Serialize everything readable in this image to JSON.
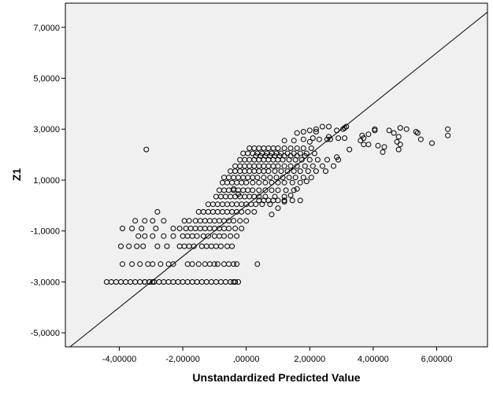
{
  "chart_data": {
    "type": "scatter",
    "title": "",
    "xlabel": "Unstandardized Predicted Value",
    "ylabel": "Z1",
    "xlim": [
      -5.7,
      7.6
    ],
    "ylim": [
      -5.55,
      7.95
    ],
    "grid": false,
    "x_ticks": [
      -4,
      -2,
      0,
      2,
      4,
      6
    ],
    "x_tick_labels": [
      "-4,00000",
      "-2,00000",
      ",00000",
      "2,00000",
      "4,00000",
      "6,00000"
    ],
    "y_ticks": [
      -5,
      -3,
      -1,
      1,
      3,
      5,
      7
    ],
    "y_tick_labels": [
      "-5,0000",
      "-3,0000",
      "-1,0000",
      "1,0000",
      "3,0000",
      "5,0000",
      "7,0000"
    ],
    "reference_line": {
      "type": "diagonal",
      "equation": "y = x"
    },
    "colors": {
      "background": "#f0f0f0",
      "marker_stroke": "#000000",
      "reference_line": "#000000"
    },
    "marker": "open-circle",
    "x": [
      -4.4,
      -4.25,
      -4.1,
      -3.95,
      -3.8,
      -3.65,
      -3.5,
      -3.35,
      -3.2,
      -3.05,
      -2.9,
      -2.75,
      -2.6,
      -2.45,
      -2.3,
      -2.15,
      -2.0,
      -1.85,
      -1.7,
      -1.55,
      -1.4,
      -1.25,
      -1.1,
      -0.95,
      -0.8,
      -0.65,
      -0.5,
      -0.35,
      -0.25,
      -3.9,
      -3.6,
      -3.35,
      -3.1,
      -2.95,
      -2.7,
      -2.45,
      -2.3,
      -1.85,
      -1.7,
      -1.5,
      -1.3,
      -1.15,
      -1.0,
      -0.9,
      -0.7,
      -0.55,
      -0.4,
      -0.3,
      -3.95,
      -3.7,
      -3.45,
      -3.25,
      -2.8,
      -2.5,
      -2.1,
      -1.95,
      -1.8,
      -1.65,
      -1.4,
      -1.25,
      -1.1,
      -0.95,
      -0.8,
      -0.6,
      -0.45,
      -3.4,
      -3.2,
      -2.95,
      -2.6,
      -2.3,
      -2.0,
      -1.85,
      -1.7,
      -1.55,
      -1.35,
      -1.2,
      -1.0,
      -0.85,
      -0.7,
      -0.5,
      -0.3,
      -3.9,
      -3.6,
      -3.3,
      -2.85,
      -2.3,
      -2.1,
      -1.9,
      -1.75,
      -1.6,
      -1.45,
      -1.3,
      -1.15,
      -1.0,
      -0.85,
      -0.7,
      -0.55,
      -0.35,
      -0.15,
      -3.5,
      -3.2,
      -2.95,
      -2.6,
      -1.95,
      -1.8,
      -1.6,
      -1.45,
      -1.3,
      -1.15,
      -1.0,
      -0.85,
      -0.7,
      -0.55,
      -0.4,
      -0.2,
      0.0,
      -2.8,
      -1.5,
      -1.35,
      -1.2,
      -1.05,
      -0.9,
      -0.75,
      -0.6,
      -0.45,
      -0.3,
      -0.15,
      0.05,
      0.25,
      -1.2,
      -1.05,
      -0.9,
      -0.75,
      -0.6,
      -0.45,
      -0.3,
      -0.15,
      0.0,
      0.15,
      0.3,
      0.5,
      0.75,
      -0.95,
      -0.8,
      -0.65,
      -0.5,
      -0.35,
      -0.2,
      -0.05,
      0.1,
      0.25,
      0.4,
      0.6,
      0.9,
      1.2,
      -0.85,
      -0.7,
      -0.55,
      -0.4,
      -0.25,
      -0.1,
      0.05,
      0.2,
      0.4,
      0.6,
      0.8,
      1.0,
      1.25,
      1.5,
      -0.75,
      -0.6,
      -0.45,
      -0.3,
      -0.15,
      0.0,
      0.2,
      0.4,
      0.6,
      0.8,
      1.0,
      1.2,
      1.45,
      1.7,
      -0.7,
      -0.55,
      -0.4,
      -0.25,
      -0.1,
      0.05,
      0.2,
      0.35,
      0.55,
      0.75,
      0.95,
      1.15,
      1.35,
      1.55,
      1.8,
      2.05,
      -0.5,
      -0.35,
      -0.2,
      -0.05,
      0.1,
      0.25,
      0.4,
      0.55,
      0.7,
      0.9,
      1.1,
      1.3,
      1.5,
      1.7,
      1.95,
      2.2,
      2.5,
      -0.35,
      -0.2,
      -0.05,
      0.1,
      0.25,
      0.4,
      0.55,
      0.7,
      0.85,
      1.0,
      1.2,
      1.4,
      1.6,
      1.85,
      2.1,
      2.4,
      2.75,
      -0.2,
      -0.05,
      0.1,
      0.25,
      0.4,
      0.55,
      0.7,
      0.85,
      1.0,
      1.15,
      1.35,
      1.55,
      1.75,
      2.0,
      2.25,
      2.55,
      2.9,
      -0.1,
      0.05,
      0.2,
      0.35,
      0.5,
      0.65,
      0.8,
      0.95,
      1.1,
      1.3,
      1.5,
      1.7,
      1.9,
      2.15,
      -0.4,
      -0.25,
      0.1,
      0.25,
      0.4,
      0.55,
      0.7,
      0.85,
      1.0,
      1.2,
      1.4,
      1.6,
      1.8,
      2.05,
      0.3,
      0.45,
      0.6,
      0.75,
      0.9,
      1.05,
      1.2,
      1.4,
      1.6,
      1.85,
      0.4,
      0.55,
      0.7,
      0.85,
      1.0,
      1.2,
      1.45,
      1.7,
      0.8,
      1.0,
      1.2,
      1.4,
      1.6,
      1.9,
      1.2,
      1.5,
      1.8,
      2.1,
      2.0,
      2.3,
      2.6,
      1.6,
      1.8,
      2.0,
      2.2,
      2.4,
      2.65,
      2.85,
      3.1,
      3.25,
      3.15,
      3.6,
      3.65,
      3.85,
      3.7,
      4.05,
      4.15,
      4.3,
      4.5,
      4.65,
      4.75,
      4.85,
      5.05,
      5.4,
      5.5,
      5.85,
      6.35,
      6.35,
      2.85,
      0.35,
      -0.4,
      -3.2,
      -3.05,
      -2.95,
      -3.15,
      2.55,
      4.05,
      4.8,
      4.8,
      3.05,
      3.1,
      3.7,
      3.85,
      4.35,
      4.85,
      5.35,
      2.2,
      2.6,
      2.9
    ],
    "y": [
      -3.0,
      -3.0,
      -3.0,
      -3.0,
      -3.0,
      -3.0,
      -3.0,
      -3.0,
      -3.0,
      -3.0,
      -3.0,
      -3.0,
      -3.0,
      -3.0,
      -3.0,
      -3.0,
      -3.0,
      -3.0,
      -3.0,
      -3.0,
      -3.0,
      -3.0,
      -3.0,
      -3.0,
      -3.0,
      -3.0,
      -3.0,
      -3.0,
      -3.0,
      -2.3,
      -2.3,
      -2.3,
      -2.3,
      -2.3,
      -2.3,
      -2.3,
      -2.3,
      -2.3,
      -2.3,
      -2.3,
      -2.3,
      -2.3,
      -2.3,
      -2.3,
      -2.3,
      -2.3,
      -2.3,
      -2.3,
      -1.6,
      -1.6,
      -1.6,
      -1.6,
      -1.6,
      -1.6,
      -1.6,
      -1.6,
      -1.6,
      -1.6,
      -1.6,
      -1.6,
      -1.6,
      -1.6,
      -1.6,
      -1.6,
      -1.6,
      -1.2,
      -1.2,
      -1.2,
      -1.2,
      -1.2,
      -1.2,
      -1.2,
      -1.2,
      -1.2,
      -1.2,
      -1.2,
      -1.2,
      -1.2,
      -1.2,
      -1.2,
      -1.2,
      -0.9,
      -0.9,
      -0.9,
      -0.9,
      -0.9,
      -0.9,
      -0.9,
      -0.9,
      -0.9,
      -0.9,
      -0.9,
      -0.9,
      -0.9,
      -0.9,
      -0.9,
      -0.9,
      -0.9,
      -0.9,
      -0.6,
      -0.6,
      -0.6,
      -0.6,
      -0.6,
      -0.6,
      -0.6,
      -0.6,
      -0.6,
      -0.6,
      -0.6,
      -0.6,
      -0.6,
      -0.6,
      -0.6,
      -0.6,
      -0.6,
      -0.25,
      -0.25,
      -0.25,
      -0.25,
      -0.25,
      -0.25,
      -0.25,
      -0.25,
      -0.25,
      -0.25,
      -0.25,
      -0.25,
      -0.25,
      0.05,
      0.05,
      0.05,
      0.05,
      0.05,
      0.05,
      0.05,
      0.05,
      0.05,
      0.05,
      0.05,
      0.05,
      0.05,
      0.35,
      0.35,
      0.35,
      0.35,
      0.35,
      0.35,
      0.35,
      0.35,
      0.35,
      0.35,
      0.35,
      0.35,
      0.35,
      0.6,
      0.6,
      0.6,
      0.6,
      0.6,
      0.6,
      0.6,
      0.6,
      0.6,
      0.6,
      0.6,
      0.6,
      0.6,
      0.6,
      0.9,
      0.9,
      0.9,
      0.9,
      0.9,
      0.9,
      0.9,
      0.9,
      0.9,
      0.9,
      0.9,
      0.9,
      0.9,
      0.9,
      1.1,
      1.1,
      1.1,
      1.1,
      1.1,
      1.1,
      1.1,
      1.1,
      1.1,
      1.1,
      1.1,
      1.1,
      1.1,
      1.1,
      1.1,
      1.1,
      1.35,
      1.35,
      1.35,
      1.35,
      1.35,
      1.35,
      1.35,
      1.35,
      1.35,
      1.35,
      1.35,
      1.35,
      1.35,
      1.35,
      1.35,
      1.35,
      1.35,
      1.55,
      1.55,
      1.55,
      1.55,
      1.55,
      1.55,
      1.55,
      1.55,
      1.55,
      1.55,
      1.55,
      1.55,
      1.55,
      1.55,
      1.55,
      1.55,
      1.55,
      1.8,
      1.8,
      1.8,
      1.8,
      1.8,
      1.8,
      1.8,
      1.8,
      1.8,
      1.8,
      1.8,
      1.8,
      1.8,
      1.8,
      1.8,
      1.8,
      1.8,
      2.05,
      2.05,
      2.05,
      2.05,
      2.05,
      2.05,
      2.05,
      2.05,
      2.05,
      2.05,
      2.05,
      2.05,
      2.05,
      2.05,
      0.65,
      0.45,
      2.25,
      2.25,
      2.25,
      2.25,
      2.25,
      2.25,
      2.25,
      2.25,
      2.25,
      2.25,
      2.25,
      2.25,
      1.95,
      1.95,
      1.95,
      1.95,
      1.95,
      1.95,
      1.95,
      1.95,
      1.95,
      1.95,
      0.2,
      0.2,
      0.2,
      0.2,
      0.2,
      0.2,
      0.2,
      0.2,
      -0.35,
      -0.1,
      0.15,
      0.4,
      0.65,
      0.95,
      2.55,
      2.55,
      2.6,
      2.65,
      2.5,
      2.6,
      2.7,
      2.85,
      2.9,
      2.95,
      3.0,
      3.1,
      2.6,
      2.95,
      3.05,
      2.2,
      3.1,
      2.55,
      2.75,
      2.4,
      2.65,
      2.95,
      2.35,
      2.1,
      2.95,
      2.85,
      2.5,
      3.05,
      3.0,
      2.85,
      2.6,
      2.45,
      3.0,
      2.75,
      1.9,
      -2.3,
      -3.0,
      -3.0,
      -3.0,
      -3.0,
      2.2,
      2.6,
      3.0,
      2.7,
      2.2,
      3.0,
      2.65,
      2.4,
      2.8,
      2.3,
      2.4,
      2.9,
      2.9,
      3.1,
      2.65
    ]
  }
}
